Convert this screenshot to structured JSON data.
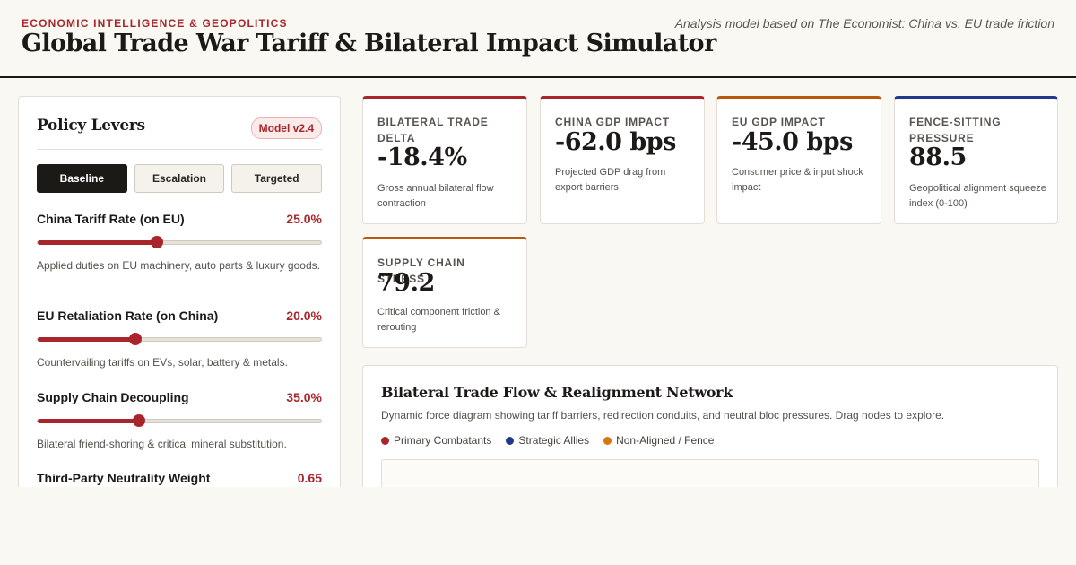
{
  "header": {
    "kicker": "ECONOMIC INTELLIGENCE & GEOPOLITICS",
    "title": "Global Trade War Tariff & Bilateral Impact Simulator",
    "source": "Analysis model based on The Economist: China vs. EU trade friction"
  },
  "panel": {
    "title": "Policy Levers",
    "badge": "Model v2.4",
    "presets": [
      "Baseline",
      "Escalation",
      "Targeted"
    ],
    "active_preset": "Baseline",
    "levers": [
      {
        "label": "China Tariff Rate (on EU)",
        "value": "25.0%",
        "level": 0.42,
        "desc": "Applied duties on EU machinery, auto parts & luxury goods."
      },
      {
        "label": "EU Retaliation Rate (on China)",
        "value": "20.0%",
        "level": 0.344,
        "desc": "Countervailing tariffs on EVs, solar, battery & metals."
      },
      {
        "label": "Supply Chain Decoupling",
        "value": "35.0%",
        "level": 0.358,
        "desc": "Bilateral friend-shoring & critical mineral substitution."
      },
      {
        "label": "Third-Party Neutrality Weight",
        "value": "0.65",
        "level": 0.65,
        "desc": ""
      }
    ]
  },
  "kpis": [
    {
      "label": "Bilateral Trade Delta",
      "value": "-18.4%",
      "desc": "Gross annual bilateral flow contraction",
      "color": "#a8262b"
    },
    {
      "label": "China GDP Impact",
      "value": "-62.0 bps",
      "desc": "Projected GDP drag from export barriers",
      "color": "#a8262b"
    },
    {
      "label": "EU GDP Impact",
      "value": "-45.0 bps",
      "desc": "Consumer price & input shock impact",
      "color": "#b8580f"
    },
    {
      "label": "Fence-Sitting Pressure",
      "value": "88.5",
      "desc": "Geopolitical alignment squeeze index (0-100)",
      "color": "#1f3a8a"
    },
    {
      "label": "Supply Chain Stress",
      "value": "79.2",
      "desc": "Critical component friction & rerouting",
      "color": "#b8580f"
    }
  ],
  "network": {
    "title": "Bilateral Trade Flow & Realignment Network",
    "subtitle": "Dynamic force diagram showing tariff barriers, redirection conduits, and neutral bloc pressures. Drag nodes to explore.",
    "legend": [
      {
        "label": "Primary Combatants",
        "color": "#a8262b"
      },
      {
        "label": "Strategic Allies",
        "color": "#1f3a8a"
      },
      {
        "label": "Non-Aligned / Fence",
        "color": "#d9770f"
      }
    ]
  }
}
